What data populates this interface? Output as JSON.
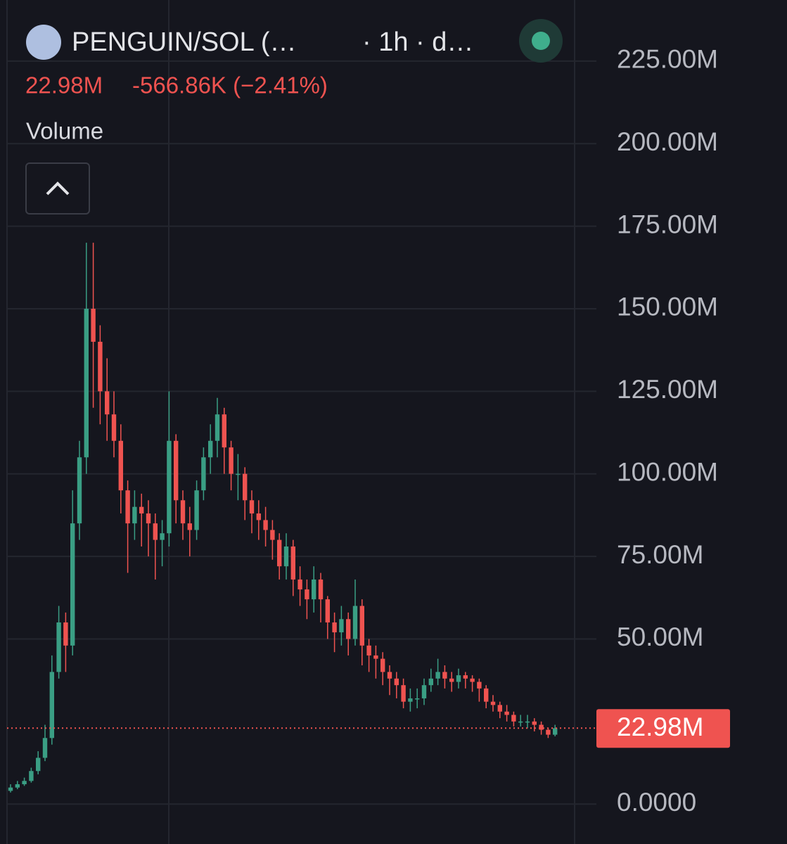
{
  "header": {
    "symbol": "PENGUIN/SOL (…",
    "interval": "· 1h · d…",
    "price": "22.98M",
    "change": "-566.86K (−2.41%)",
    "indicator": "Volume"
  },
  "chart_data": {
    "type": "candlestick",
    "up_color": "#3a9e84",
    "down_color": "#ef5350",
    "ylim": [
      -12.1,
      243.5
    ],
    "yticks": [
      {
        "value": 0,
        "label": "0.0000"
      },
      {
        "value": 50,
        "label": "50.00M"
      },
      {
        "value": 75,
        "label": "75.00M"
      },
      {
        "value": 100,
        "label": "100.00M"
      },
      {
        "value": 125,
        "label": "125.00M"
      },
      {
        "value": 150,
        "label": "150.00M"
      },
      {
        "value": 175,
        "label": "175.00M"
      },
      {
        "value": 200,
        "label": "200.00M"
      },
      {
        "value": 225,
        "label": "225.00M"
      }
    ],
    "grid": true,
    "price_line": {
      "value": 22.98,
      "label": "22.98M",
      "color": "#ef5350"
    },
    "open": [
      4,
      5,
      6,
      7,
      10,
      14,
      20,
      40,
      55,
      48,
      85,
      105,
      150,
      140,
      125,
      118,
      110,
      95,
      85,
      90,
      88,
      85,
      80,
      82,
      110,
      92,
      85,
      83,
      95,
      105,
      110,
      118,
      108,
      100,
      100,
      92,
      88,
      86,
      83,
      80,
      72,
      78,
      68,
      65,
      62,
      68,
      62,
      55,
      52,
      56,
      50,
      60,
      48,
      45,
      44,
      40,
      38,
      36,
      31,
      32,
      32,
      36,
      38,
      40,
      38,
      37,
      39,
      38,
      37,
      35,
      31,
      30,
      28,
      27,
      25,
      25,
      25,
      24,
      22.5,
      21
    ],
    "high": [
      6,
      7,
      8,
      11,
      16,
      24,
      45,
      60,
      58,
      95,
      110,
      170,
      170,
      145,
      135,
      125,
      115,
      98,
      95,
      94,
      92,
      88,
      86,
      125,
      112,
      95,
      90,
      98,
      108,
      115,
      123,
      120,
      110,
      106,
      102,
      95,
      92,
      90,
      86,
      82,
      82,
      80,
      72,
      68,
      72,
      70,
      63,
      58,
      60,
      58,
      68,
      62,
      50,
      48,
      46,
      42,
      40,
      38,
      35,
      35,
      38,
      41,
      44,
      42,
      40,
      41,
      40,
      39,
      38,
      36,
      33,
      31,
      30,
      28,
      27,
      27,
      26,
      25,
      23,
      24
    ],
    "low": [
      3.5,
      4.5,
      5.5,
      6.5,
      9,
      13,
      18,
      38,
      40,
      45,
      80,
      100,
      120,
      115,
      110,
      105,
      88,
      70,
      80,
      78,
      75,
      68,
      72,
      78,
      85,
      80,
      75,
      80,
      92,
      100,
      105,
      100,
      95,
      92,
      86,
      82,
      80,
      78,
      74,
      68,
      68,
      63,
      60,
      56,
      58,
      55,
      50,
      46,
      48,
      45,
      48,
      42,
      40,
      38,
      36,
      33,
      32,
      29,
      28,
      29,
      30,
      34,
      36,
      35,
      34,
      35,
      35,
      34,
      31,
      29,
      28,
      26,
      25,
      23.5,
      23.5,
      23,
      22,
      21,
      20,
      20.5
    ],
    "close": [
      5,
      6,
      7,
      10,
      14,
      20,
      40,
      55,
      48,
      85,
      105,
      150,
      140,
      125,
      118,
      110,
      95,
      85,
      90,
      88,
      85,
      80,
      82,
      110,
      92,
      85,
      83,
      95,
      105,
      110,
      118,
      108,
      100,
      100,
      92,
      88,
      86,
      83,
      80,
      72,
      78,
      68,
      65,
      62,
      68,
      62,
      55,
      52,
      56,
      50,
      60,
      48,
      45,
      44,
      40,
      38,
      36,
      31,
      32,
      32,
      36,
      38,
      40,
      38,
      37,
      39,
      38,
      37,
      35,
      31,
      30,
      28,
      27,
      25,
      25,
      25,
      24,
      22.5,
      21,
      22.98
    ]
  }
}
